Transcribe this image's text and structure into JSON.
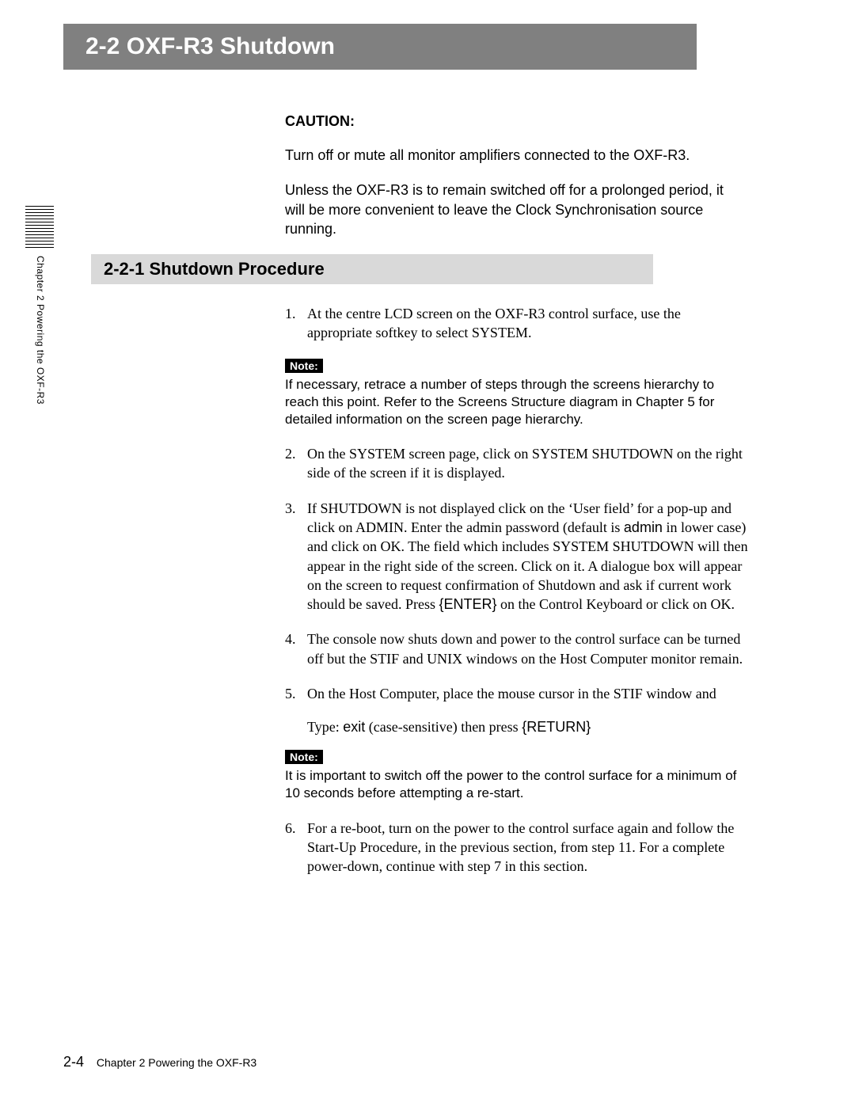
{
  "banner": {
    "title": "2-2  OXF-R3 Shutdown"
  },
  "caution": {
    "label": "CAUTION:",
    "p1": "Turn off or mute all monitor amplifiers connected to the OXF-R3.",
    "p2": "Unless the OXF-R3 is to remain switched off for a prolonged period, it will be more convenient to leave the Clock Synchronisation source running."
  },
  "subsection": {
    "title": "2-2-1  Shutdown Procedure"
  },
  "steps": {
    "s1": "At the centre LCD screen on the OXF-R3 control surface, use the appropriate softkey to select SYSTEM.",
    "s2": "On the SYSTEM screen page, click on SYSTEM SHUTDOWN on the right side of the screen if it is displayed.",
    "s3a": "If SHUTDOWN is not displayed click on the ‘User field’ for a pop-up and click on ADMIN.  Enter the admin password (default is ",
    "s3_admin": "admin",
    "s3b": " in lower case) and click on OK.  The field which includes SYSTEM SHUTDOWN will then appear in the right side of the screen.  Click on it.  A dialogue box will appear on the screen to request confirmation of Shutdown and ask if current work should be saved.  Press ",
    "s3_enter": "{ENTER}",
    "s3c": " on the Control Keyboard or click on OK.",
    "s4": "The console now shuts down and power to the control surface can be turned off but the STIF and UNIX windows on the Host Computer monitor remain.",
    "s5": "On the Host Computer, place the mouse cursor in the STIF window and",
    "s6": "For a re-boot, turn on the power to the control surface again and follow the Start-Up Procedure, in the previous section, from step 11.  For a complete power-down, continue with step 7 in this section."
  },
  "typeline": {
    "prefix": "Type:  ",
    "cmd": "exit",
    "mid": " (case-sensitive) then press ",
    "key": "{RETURN}"
  },
  "note1": {
    "label": "Note:",
    "text": "If necessary, retrace a number of steps through the screens hierarchy to reach this point.  Refer to the Screens Structure diagram in Chapter 5 for detailed information on the screen page hierarchy."
  },
  "note2": {
    "label": "Note:",
    "text": "It is important to switch off the power to the control surface for a minimum of 10 seconds before attempting a re-start."
  },
  "sidetab": {
    "text": "Chapter 2  Powering the OXF-R3"
  },
  "footer": {
    "pagenum": "2-4",
    "text": "Chapter 2   Powering the OXF-R3"
  }
}
